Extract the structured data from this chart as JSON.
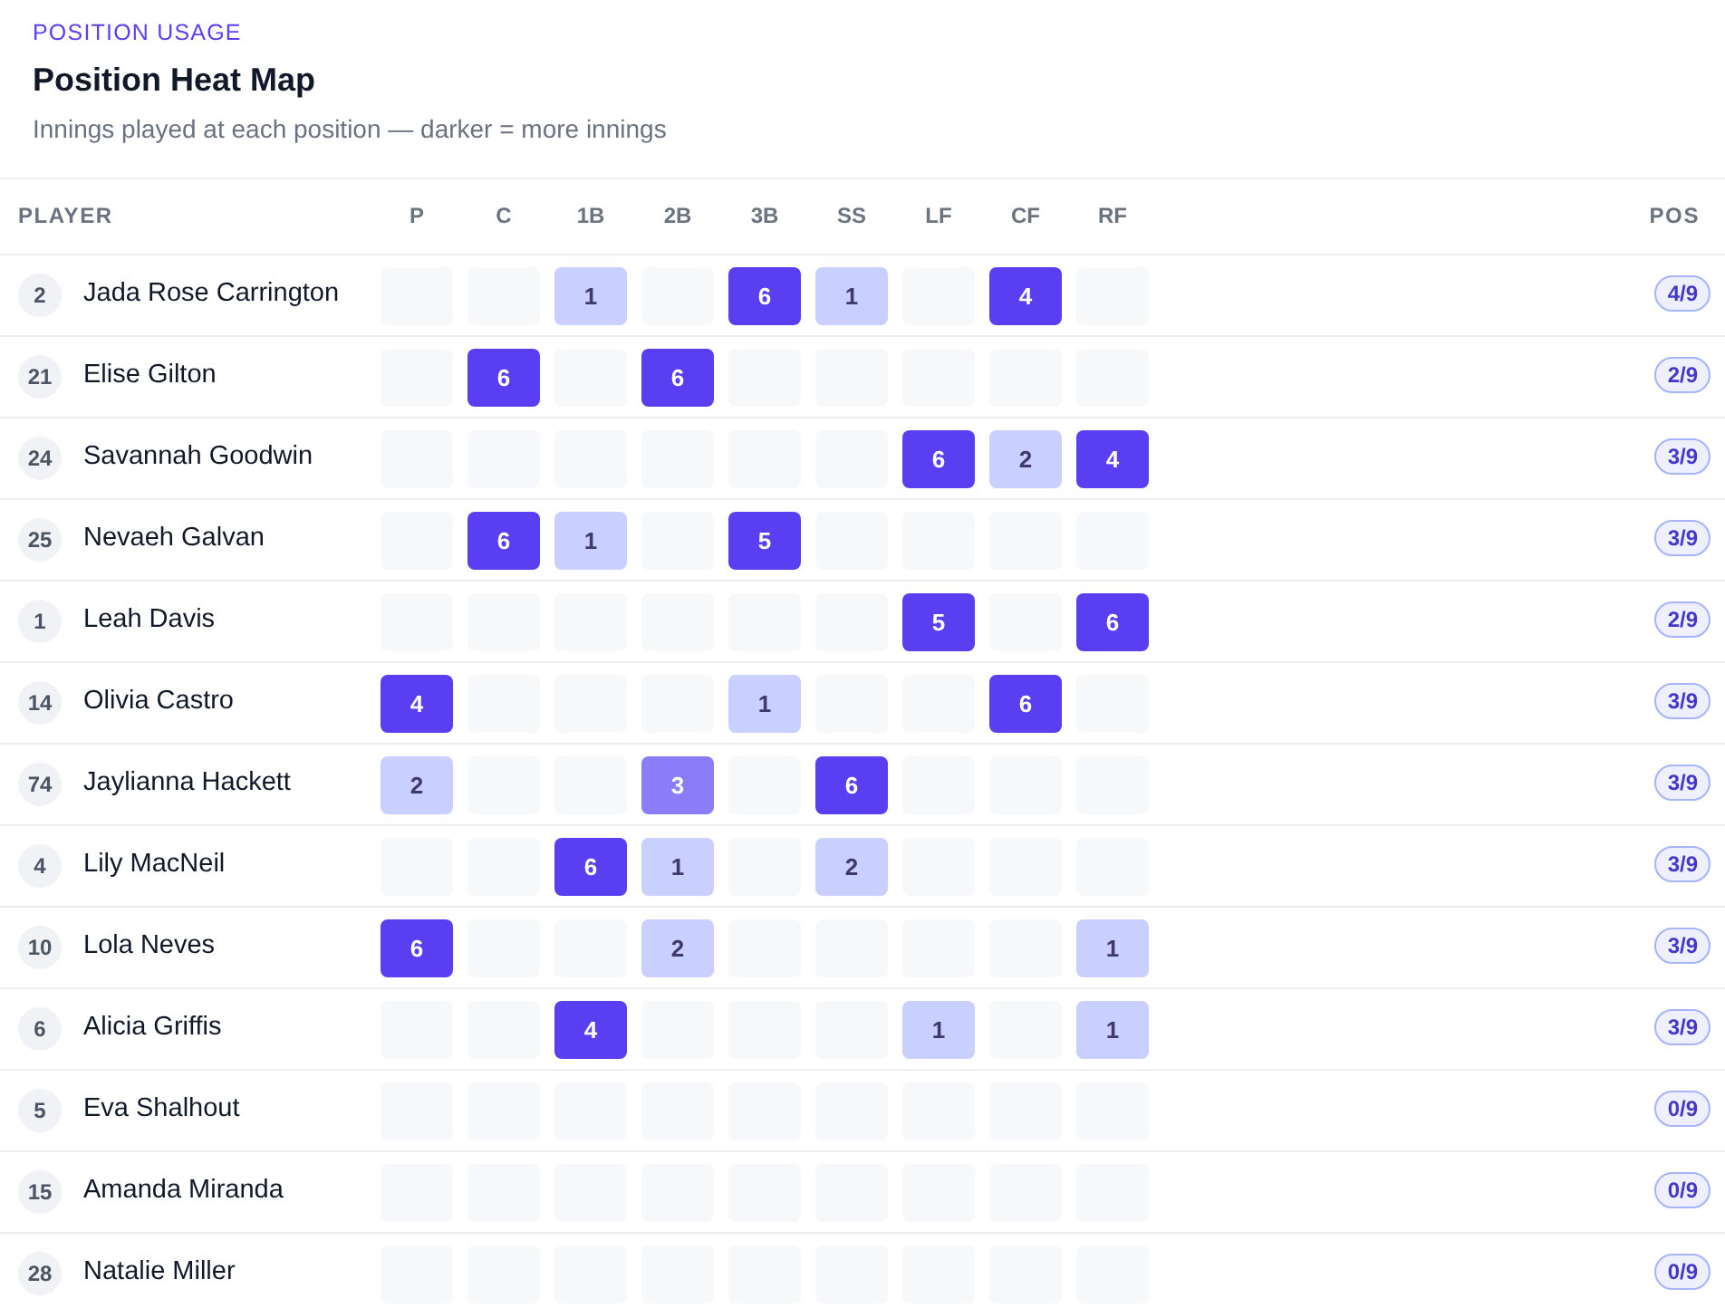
{
  "chart_data": {
    "type": "heatmap",
    "title": "Position Heat Map",
    "subtitle": "Innings played at each position — darker = more innings",
    "annotations": [
      "POSITION USAGE",
      "PLAYER",
      "POS"
    ],
    "data_labels": true,
    "categories": [
      "P",
      "C",
      "1B",
      "2B",
      "3B",
      "SS",
      "LF",
      "CF",
      "RF"
    ],
    "y_categories": [
      "2 Jada Rose Carrington",
      "21 Elise Gilton",
      "24 Savannah Goodwin",
      "25 Nevaeh Galvan",
      "1 Leah Davis",
      "14 Olivia Castro",
      "74 Jaylianna Hackett",
      "4 Lily MacNeil",
      "10 Lola Neves",
      "6 Alicia Griffis",
      "5 Eva Shalhout",
      "15 Amanda Miranda",
      "28 Natalie Miller"
    ],
    "y2_categories": [
      "4/9",
      "2/9",
      "3/9",
      "3/9",
      "2/9",
      "3/9",
      "3/9",
      "3/9",
      "3/9",
      "3/9",
      "0/9",
      "0/9",
      "0/9"
    ],
    "cells": [
      [
        null,
        null,
        1,
        null,
        6,
        1,
        null,
        4,
        null
      ],
      [
        null,
        6,
        null,
        6,
        null,
        null,
        null,
        null,
        null
      ],
      [
        null,
        null,
        null,
        null,
        null,
        null,
        6,
        2,
        4
      ],
      [
        null,
        6,
        1,
        null,
        5,
        null,
        null,
        null,
        null
      ],
      [
        null,
        null,
        null,
        null,
        null,
        null,
        5,
        null,
        6
      ],
      [
        4,
        null,
        null,
        null,
        1,
        null,
        null,
        6,
        null
      ],
      [
        2,
        null,
        null,
        3,
        null,
        6,
        null,
        null,
        null
      ],
      [
        null,
        null,
        6,
        1,
        null,
        2,
        null,
        null,
        null
      ],
      [
        6,
        null,
        null,
        2,
        null,
        null,
        null,
        null,
        1
      ],
      [
        null,
        null,
        4,
        null,
        null,
        null,
        1,
        null,
        1
      ],
      [
        null,
        null,
        null,
        null,
        null,
        null,
        null,
        null,
        null
      ],
      [
        null,
        null,
        null,
        null,
        null,
        null,
        null,
        null,
        null
      ],
      [
        null,
        null,
        null,
        null,
        null,
        null,
        null,
        null,
        null
      ]
    ]
  }
}
